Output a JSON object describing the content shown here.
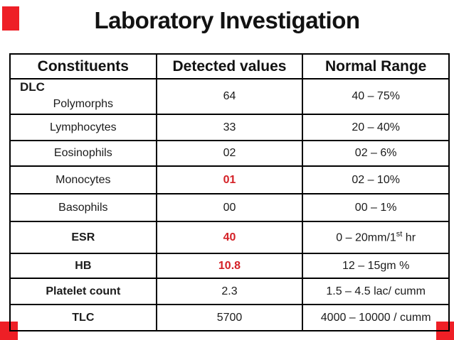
{
  "title": "Laboratory Investigation",
  "table": {
    "headers": [
      "Constituents",
      "Detected values",
      "Normal Range"
    ],
    "group_label": "DLC",
    "rows": [
      {
        "constituent": "Polymorphs",
        "value": "64",
        "range": "40 – 75%"
      },
      {
        "constituent": "Lymphocytes",
        "value": "33",
        "range": "20 – 40%"
      },
      {
        "constituent": "Eosinophils",
        "value": "02",
        "range": "02 – 6%"
      },
      {
        "constituent": "Monocytes",
        "value": "01",
        "range": "02 – 10%"
      },
      {
        "constituent": "Basophils",
        "value": "00",
        "range": "00 – 1%"
      },
      {
        "constituent": "ESR",
        "value": "40",
        "range_pre": "0 – 20mm/1",
        "range_sup": "st",
        "range_post": " hr"
      },
      {
        "constituent": "HB",
        "value": "10.8",
        "range": "12 – 15gm %"
      },
      {
        "constituent": "Platelet count",
        "value": "2.3",
        "range": "1.5 – 4.5 lac/ cumm"
      },
      {
        "constituent": "TLC",
        "value": "5700",
        "range": "4000 – 10000 / cumm"
      }
    ]
  },
  "colors": {
    "highlight_red": "#d42127",
    "corner_accent_red": "#ee1f26",
    "border_black": "#000000"
  }
}
